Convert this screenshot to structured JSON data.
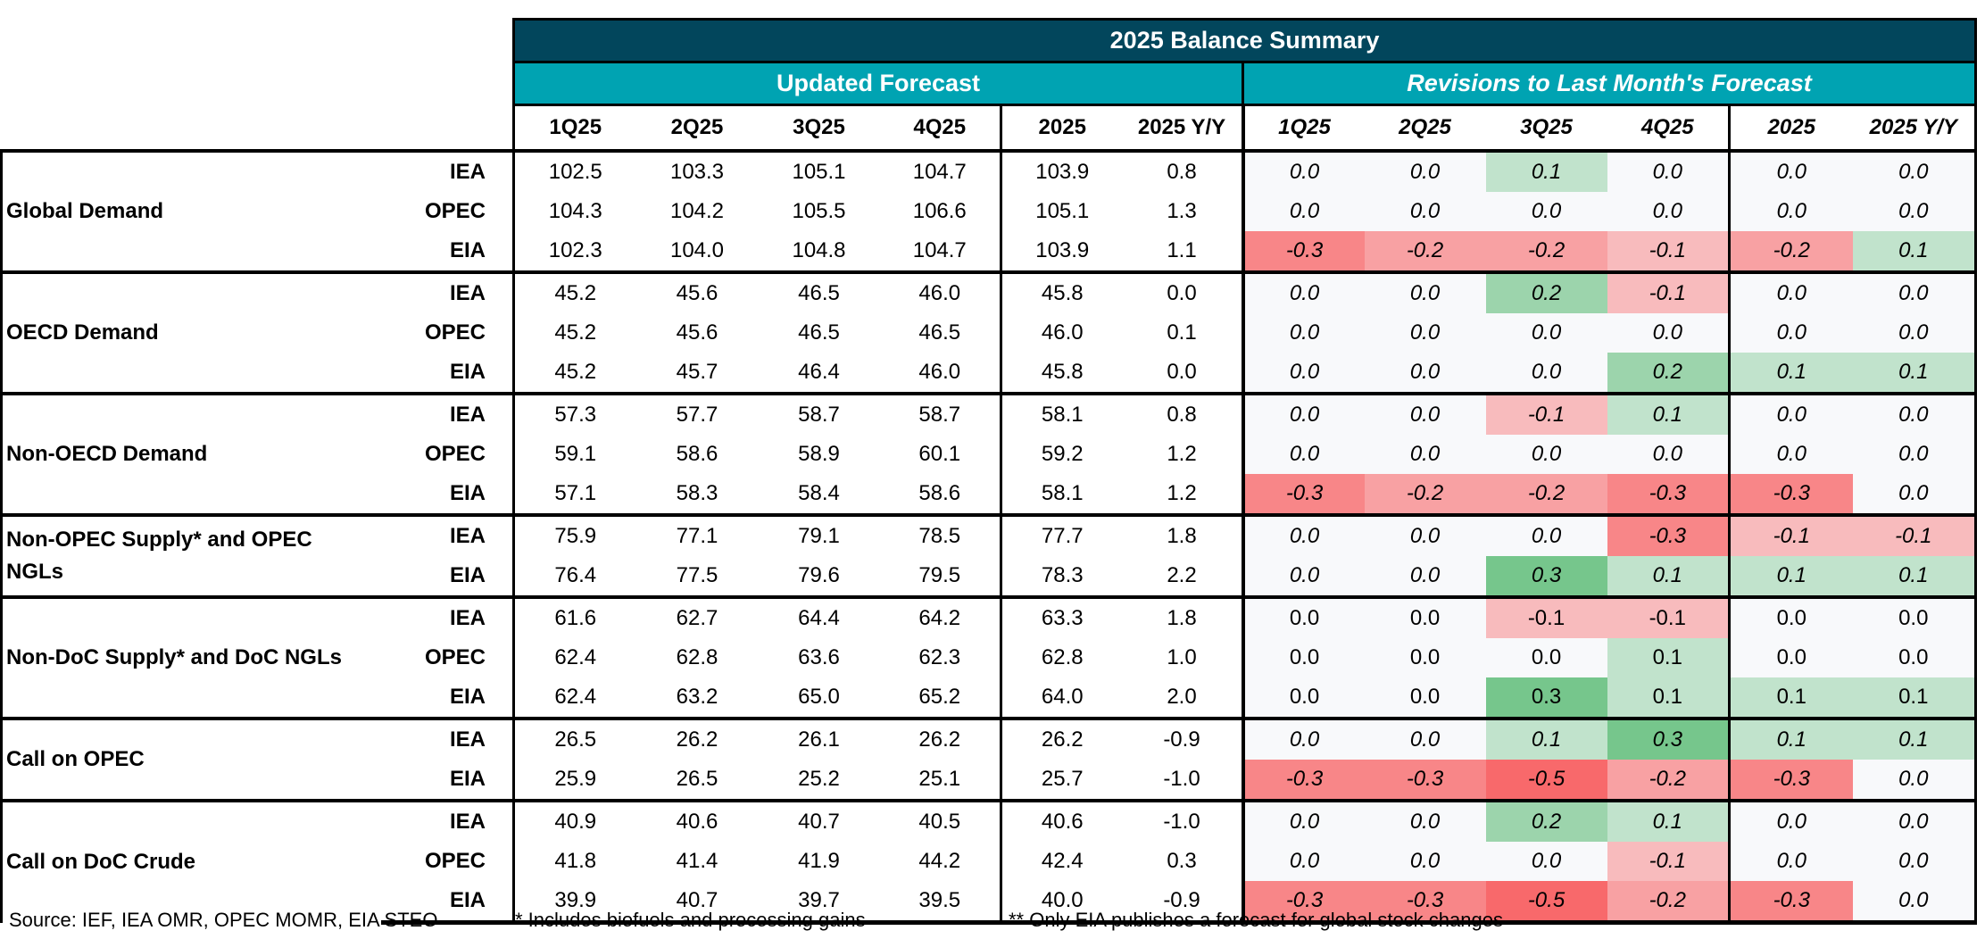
{
  "title": "2025 Balance Summary",
  "sections": {
    "updated": "Updated Forecast",
    "revisions": "Revisions to Last Month's Forecast"
  },
  "columns": [
    "1Q25",
    "2Q25",
    "3Q25",
    "4Q25",
    "2025",
    "2025 Y/Y"
  ],
  "colors": {
    "title_bg": "#02465C",
    "subtitle_bg": "#00A3B2",
    "negative": "#F8696B",
    "positive": "#63BE7B",
    "neutral": "#F8F9FB"
  },
  "groups": [
    {
      "label": "Global Demand",
      "italic": true,
      "rows": [
        {
          "source": "IEA",
          "values": [
            "102.5",
            "103.3",
            "105.1",
            "104.7",
            "103.9",
            "0.8"
          ],
          "revisions": [
            "0.0",
            "0.0",
            "0.1",
            "0.0",
            "0.0",
            "0.0"
          ]
        },
        {
          "source": "OPEC",
          "values": [
            "104.3",
            "104.2",
            "105.5",
            "106.6",
            "105.1",
            "1.3"
          ],
          "revisions": [
            "0.0",
            "0.0",
            "0.0",
            "0.0",
            "0.0",
            "0.0"
          ]
        },
        {
          "source": "EIA",
          "values": [
            "102.3",
            "104.0",
            "104.8",
            "104.7",
            "103.9",
            "1.1"
          ],
          "revisions": [
            "-0.3",
            "-0.2",
            "-0.2",
            "-0.1",
            "-0.2",
            "0.1"
          ]
        }
      ]
    },
    {
      "label": "OECD Demand",
      "italic": true,
      "rows": [
        {
          "source": "IEA",
          "values": [
            "45.2",
            "45.6",
            "46.5",
            "46.0",
            "45.8",
            "0.0"
          ],
          "revisions": [
            "0.0",
            "0.0",
            "0.2",
            "-0.1",
            "0.0",
            "0.0"
          ]
        },
        {
          "source": "OPEC",
          "values": [
            "45.2",
            "45.6",
            "46.5",
            "46.5",
            "46.0",
            "0.1"
          ],
          "revisions": [
            "0.0",
            "0.0",
            "0.0",
            "0.0",
            "0.0",
            "0.0"
          ]
        },
        {
          "source": "EIA",
          "values": [
            "45.2",
            "45.7",
            "46.4",
            "46.0",
            "45.8",
            "0.0"
          ],
          "revisions": [
            "0.0",
            "0.0",
            "0.0",
            "0.2",
            "0.1",
            "0.1"
          ]
        }
      ]
    },
    {
      "label": "Non-OECD Demand",
      "italic": true,
      "rows": [
        {
          "source": "IEA",
          "values": [
            "57.3",
            "57.7",
            "58.7",
            "58.7",
            "58.1",
            "0.8"
          ],
          "revisions": [
            "0.0",
            "0.0",
            "-0.1",
            "0.1",
            "0.0",
            "0.0"
          ]
        },
        {
          "source": "OPEC",
          "values": [
            "59.1",
            "58.6",
            "58.9",
            "60.1",
            "59.2",
            "1.2"
          ],
          "revisions": [
            "0.0",
            "0.0",
            "0.0",
            "0.0",
            "0.0",
            "0.0"
          ]
        },
        {
          "source": "EIA",
          "values": [
            "57.1",
            "58.3",
            "58.4",
            "58.6",
            "58.1",
            "1.2"
          ],
          "revisions": [
            "-0.3",
            "-0.2",
            "-0.2",
            "-0.3",
            "-0.3",
            "0.0"
          ]
        }
      ]
    },
    {
      "label": "Non-OPEC Supply* and OPEC NGLs",
      "italic": true,
      "rows": [
        {
          "source": "IEA",
          "values": [
            "75.9",
            "77.1",
            "79.1",
            "78.5",
            "77.7",
            "1.8"
          ],
          "revisions": [
            "0.0",
            "0.0",
            "0.0",
            "-0.3",
            "-0.1",
            "-0.1"
          ]
        },
        {
          "source": "EIA",
          "values": [
            "76.4",
            "77.5",
            "79.6",
            "79.5",
            "78.3",
            "2.2"
          ],
          "revisions": [
            "0.0",
            "0.0",
            "0.3",
            "0.1",
            "0.1",
            "0.1"
          ]
        }
      ]
    },
    {
      "label": "Non-DoC Supply* and DoC NGLs",
      "italic": false,
      "rows": [
        {
          "source": "IEA",
          "values": [
            "61.6",
            "62.7",
            "64.4",
            "64.2",
            "63.3",
            "1.8"
          ],
          "revisions": [
            "0.0",
            "0.0",
            "-0.1",
            "-0.1",
            "0.0",
            "0.0"
          ]
        },
        {
          "source": "OPEC",
          "values": [
            "62.4",
            "62.8",
            "63.6",
            "62.3",
            "62.8",
            "1.0"
          ],
          "revisions": [
            "0.0",
            "0.0",
            "0.0",
            "0.1",
            "0.0",
            "0.0"
          ]
        },
        {
          "source": "EIA",
          "values": [
            "62.4",
            "63.2",
            "65.0",
            "65.2",
            "64.0",
            "2.0"
          ],
          "revisions": [
            "0.0",
            "0.0",
            "0.3",
            "0.1",
            "0.1",
            "0.1"
          ]
        }
      ]
    },
    {
      "label": "Call on OPEC",
      "italic": true,
      "rows": [
        {
          "source": "IEA",
          "values": [
            "26.5",
            "26.2",
            "26.1",
            "26.2",
            "26.2",
            "-0.9"
          ],
          "revisions": [
            "0.0",
            "0.0",
            "0.1",
            "0.3",
            "0.1",
            "0.1"
          ]
        },
        {
          "source": "EIA",
          "values": [
            "25.9",
            "26.5",
            "25.2",
            "25.1",
            "25.7",
            "-1.0"
          ],
          "revisions": [
            "-0.3",
            "-0.3",
            "-0.5",
            "-0.2",
            "-0.3",
            "0.0"
          ]
        }
      ]
    },
    {
      "label": "Call on DoC Crude",
      "italic": true,
      "rows": [
        {
          "source": "IEA",
          "values": [
            "40.9",
            "40.6",
            "40.7",
            "40.5",
            "40.6",
            "-1.0"
          ],
          "revisions": [
            "0.0",
            "0.0",
            "0.2",
            "0.1",
            "0.0",
            "0.0"
          ]
        },
        {
          "source": "OPEC",
          "values": [
            "41.8",
            "41.4",
            "41.9",
            "44.2",
            "42.4",
            "0.3"
          ],
          "revisions": [
            "0.0",
            "0.0",
            "0.0",
            "-0.1",
            "0.0",
            "0.0"
          ]
        },
        {
          "source": "EIA",
          "values": [
            "39.9",
            "40.7",
            "39.7",
            "39.5",
            "40.0",
            "-0.9"
          ],
          "revisions": [
            "-0.3",
            "-0.3",
            "-0.5",
            "-0.2",
            "-0.3",
            "0.0"
          ]
        }
      ]
    }
  ],
  "footer": {
    "source": "Source: IEF, IEA OMR, OPEC MOMR, EIA STEO",
    "note1": "* Includes biofuels and processing gains",
    "note2": "** Only EIA publishes a forecast for global stock changes"
  }
}
